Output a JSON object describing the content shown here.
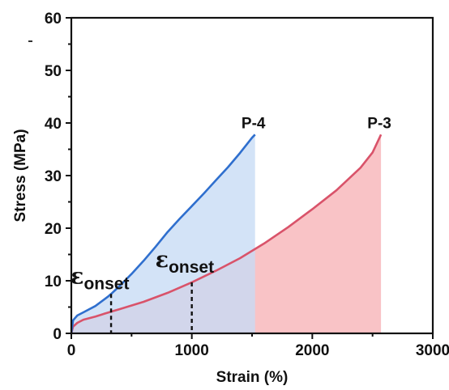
{
  "chart_data": {
    "type": "line",
    "xlabel": "Strain (%)",
    "ylabel": "Stress (MPa)",
    "xlim": [
      0,
      3000
    ],
    "ylim": [
      0,
      60
    ],
    "xticks": [
      "0",
      "1000",
      "2000",
      "3000"
    ],
    "yticks": [
      "0",
      "10",
      "20",
      "30",
      "40",
      "50",
      "60"
    ],
    "grid": false,
    "series": [
      {
        "name": "P-4",
        "color": "#2f6fce",
        "fill": "#c6dbf5",
        "x": [
          0,
          15,
          50,
          100,
          200,
          300,
          330,
          400,
          500,
          600,
          700,
          800,
          900,
          1000,
          1100,
          1200,
          1300,
          1400,
          1500,
          1525
        ],
        "y": [
          0,
          2.5,
          3.4,
          4.0,
          5.2,
          6.9,
          7.5,
          9.0,
          11.3,
          13.8,
          16.5,
          19.3,
          21.8,
          24.2,
          26.6,
          29.1,
          31.6,
          34.3,
          37.2,
          37.8
        ]
      },
      {
        "name": "P-3",
        "color": "#d9536a",
        "fill": "#f9c3c6",
        "x": [
          0,
          15,
          50,
          100,
          200,
          340,
          400,
          600,
          800,
          1000,
          1200,
          1400,
          1600,
          1800,
          2000,
          2200,
          2400,
          2500,
          2570
        ],
        "y": [
          0,
          1.3,
          2.0,
          2.6,
          3.2,
          4.2,
          4.6,
          6.0,
          7.7,
          9.7,
          11.9,
          14.3,
          17.1,
          20.2,
          23.6,
          27.2,
          31.5,
          34.4,
          37.8
        ]
      }
    ],
    "annotations": [
      {
        "symbol": "ε",
        "subscript": "onset",
        "x": 330,
        "y": 7.5,
        "series": "P-4"
      },
      {
        "symbol": "ε",
        "subscript": "onset",
        "x": 1000,
        "y": 9.7,
        "series": "P-3"
      }
    ]
  }
}
